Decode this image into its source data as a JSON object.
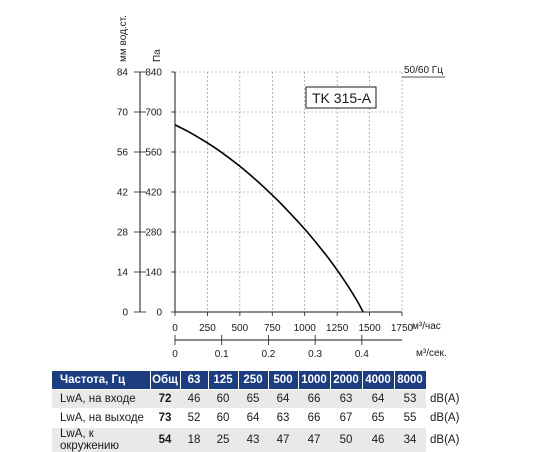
{
  "chart_data": {
    "type": "line",
    "model_label": "TK 315-A",
    "frequency_note": "50/60 Гц",
    "y_units": {
      "left": "мм вод.ст.",
      "right": "Па"
    },
    "x_units": {
      "flow_h": "м³/час",
      "flow_s": "м³/сек."
    },
    "y_ticks_mm": [
      "0",
      "14",
      "28",
      "42",
      "56",
      "70",
      "84"
    ],
    "y_ticks_pa": [
      "0",
      "140",
      "280",
      "420",
      "560",
      "700",
      "840"
    ],
    "x_ticks_h": [
      "0",
      "250",
      "500",
      "750",
      "1000",
      "1250",
      "1500",
      "1750"
    ],
    "x_ticks_s": [
      "0",
      "0.1",
      "0.2",
      "0.3",
      "0.4"
    ],
    "xlim_h": [
      0,
      1750
    ],
    "ylim_pa": [
      0,
      840
    ],
    "xlim_s": [
      0,
      0.486
    ],
    "series": [
      {
        "x": [
          0,
          100,
          200,
          300,
          400,
          500,
          600,
          700,
          800,
          900,
          1000,
          1100,
          1200,
          1300,
          1400,
          1450
        ],
        "y": [
          655,
          632,
          606,
          577,
          545,
          510,
          472,
          431,
          387,
          340,
          290,
          236,
          178,
          114,
          42,
          0
        ]
      }
    ],
    "grid": true
  },
  "noise_table": {
    "headers": [
      "Частота, Гц",
      "Общ",
      "63",
      "125",
      "250",
      "500",
      "1000",
      "2000",
      "4000",
      "8000"
    ],
    "rows": [
      {
        "label": "LwA, на входе",
        "total": "72",
        "values": [
          "46",
          "60",
          "65",
          "64",
          "66",
          "63",
          "64",
          "53"
        ],
        "unit": "dB(A)"
      },
      {
        "label": "LwA, на выходе",
        "total": "73",
        "values": [
          "52",
          "60",
          "64",
          "63",
          "66",
          "67",
          "65",
          "55"
        ],
        "unit": "dB(A)"
      },
      {
        "label": "LwA, к окружению",
        "total": "54",
        "values": [
          "18",
          "25",
          "43",
          "47",
          "47",
          "50",
          "46",
          "34"
        ],
        "unit": "dB(A)"
      }
    ]
  }
}
